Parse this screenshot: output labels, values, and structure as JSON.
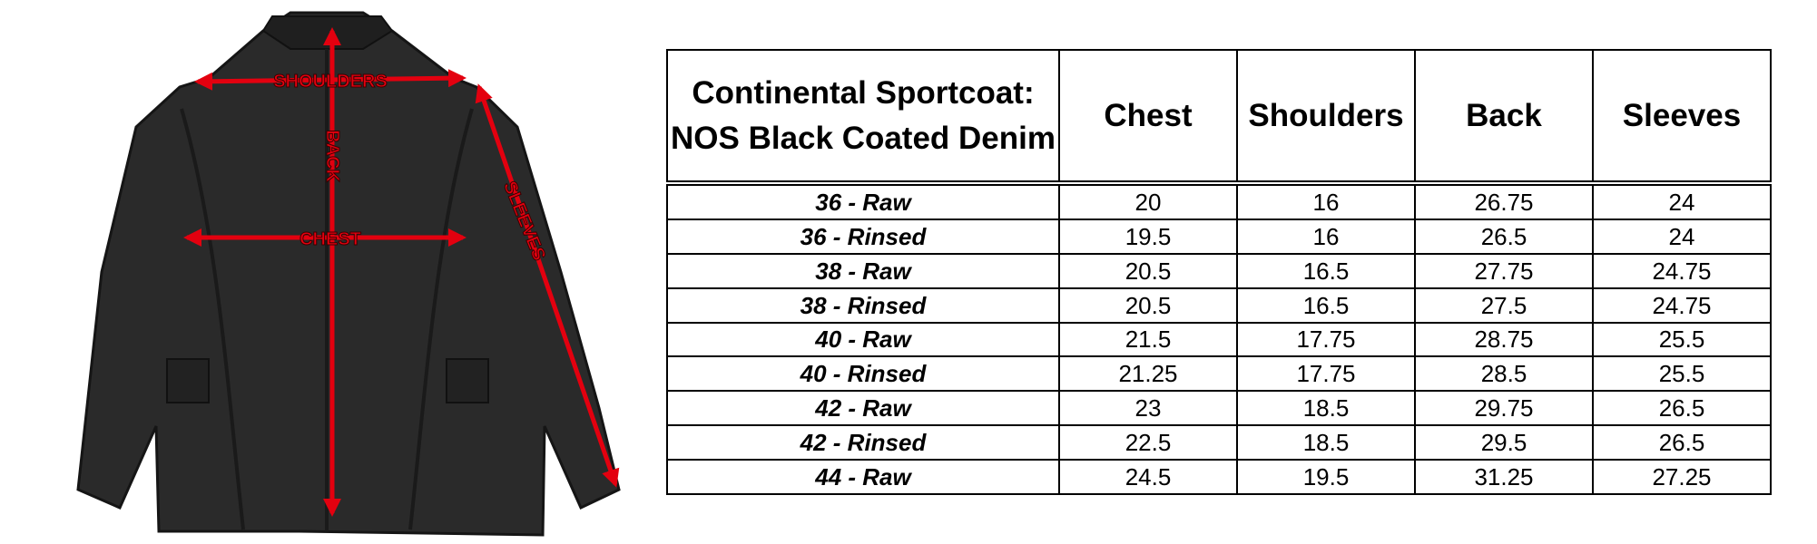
{
  "figure": {
    "labels": {
      "shoulders": "SHOULDERS",
      "back": "BACK",
      "chest": "CHEST",
      "sleeves": "SLEEVES"
    },
    "colors": {
      "jacket": "#2a2a2a",
      "jacket_shadow": "#1a1a1a",
      "arrow": "#e3000f",
      "label_outline": "#3a0000"
    }
  },
  "table": {
    "title": "Continental Sportcoat: NOS Black Coated Denim",
    "columns": [
      "Chest",
      "Shoulders",
      "Back",
      "Sleeves"
    ],
    "rows": [
      {
        "size": "36 - Raw",
        "chest": "20",
        "shoulders": "16",
        "back": "26.75",
        "sleeves": "24"
      },
      {
        "size": "36 - Rinsed",
        "chest": "19.5",
        "shoulders": "16",
        "back": "26.5",
        "sleeves": "24"
      },
      {
        "size": "38 - Raw",
        "chest": "20.5",
        "shoulders": "16.5",
        "back": "27.75",
        "sleeves": "24.75"
      },
      {
        "size": "38 - Rinsed",
        "chest": "20.5",
        "shoulders": "16.5",
        "back": "27.5",
        "sleeves": "24.75"
      },
      {
        "size": "40 - Raw",
        "chest": "21.5",
        "shoulders": "17.75",
        "back": "28.75",
        "sleeves": "25.5"
      },
      {
        "size": "40 - Rinsed",
        "chest": "21.25",
        "shoulders": "17.75",
        "back": "28.5",
        "sleeves": "25.5"
      },
      {
        "size": "42 - Raw",
        "chest": "23",
        "shoulders": "18.5",
        "back": "29.75",
        "sleeves": "26.5"
      },
      {
        "size": "42 - Rinsed",
        "chest": "22.5",
        "shoulders": "18.5",
        "back": "29.5",
        "sleeves": "26.5"
      },
      {
        "size": "44 - Raw",
        "chest": "24.5",
        "shoulders": "19.5",
        "back": "31.25",
        "sleeves": "27.25"
      }
    ]
  }
}
